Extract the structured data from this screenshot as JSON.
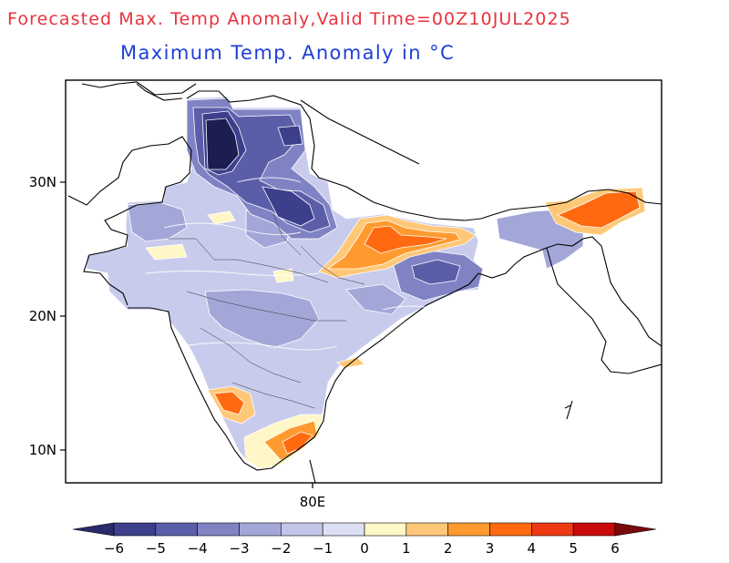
{
  "header": {
    "title": "Forecasted Max. Temp Anomaly,Valid Time=00Z10JUL2025",
    "subtitle": "Maximum Temp. Anomaly in °C"
  },
  "map": {
    "lat_labels": [
      "30N",
      "20N",
      "10N"
    ],
    "lon_labels": [
      "80E"
    ]
  },
  "colorbar": {
    "labels": [
      "−6",
      "−5",
      "−4",
      "−3",
      "−2",
      "−1",
      "0",
      "1",
      "2",
      "3",
      "4",
      "5",
      "6"
    ],
    "colors": [
      "#2a2b6a",
      "#3b3f8c",
      "#5a5ea8",
      "#7f83c4",
      "#a3a7d8",
      "#c3c6e8",
      "#dddff4",
      "#fff7c8",
      "#ffc878",
      "#ff9a2e",
      "#ff6a10",
      "#ee3a12",
      "#c80a0a",
      "#7a0a0a"
    ]
  },
  "colors": {
    "title": "#e8323c",
    "subtitle": "#1f3fd8"
  }
}
